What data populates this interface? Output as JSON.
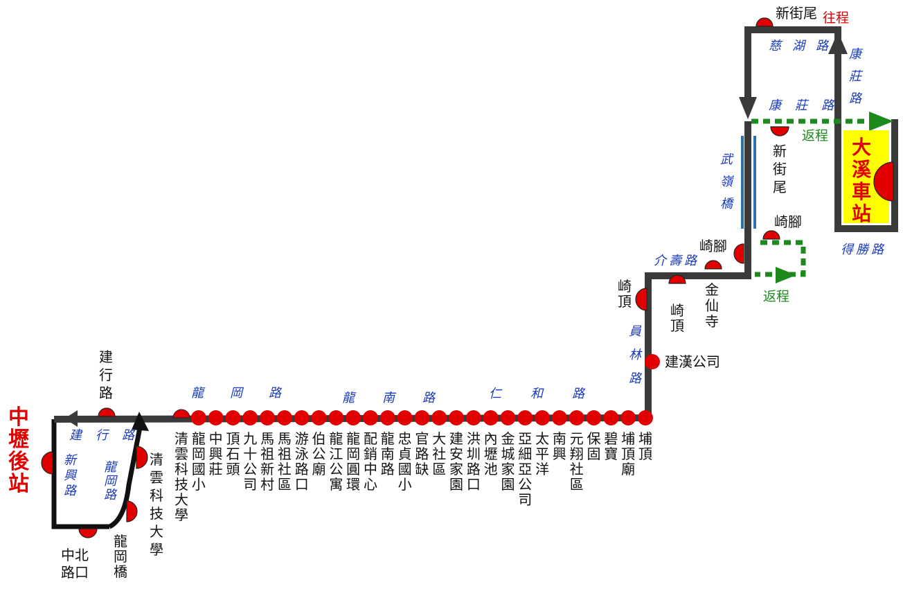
{
  "colors": {
    "route": "#3a3a3a",
    "return_route": "#1e8a1e",
    "stop": "#e00000",
    "terminal_text": "#e00000",
    "road_text": "#1a3bbf",
    "terminal_box": "#ffff00",
    "bridge": "#2c6fb0",
    "outbound_label": "#e00000",
    "return_label": "#1e8a1e"
  },
  "terminals": {
    "west": "中壢後站",
    "east": "大溪車站"
  },
  "directions": {
    "outbound": "往程",
    "return": "返程"
  },
  "roads": {
    "jianxing": "建行路",
    "xinxing": "新興路",
    "longgang_small": "龍岡路",
    "longgang": "龍岡路",
    "longnan": "龍南路",
    "renhe": "仁和路",
    "yuanlin": "員林路",
    "jieshou": "介壽路",
    "wuling_bridge": "武嶺橋",
    "cihu": "慈湖路",
    "kangzhuang_v": "康莊路",
    "kangzhuang_h": "康莊路",
    "desheng": "得勝路"
  },
  "stops": {
    "jianxing": "建行路",
    "zhongbei": "中北路口",
    "longgangqiao": "龍岡橋",
    "qingyun_tech": "清雲科技大學",
    "main_row": [
      "清雲科技大學",
      "龍岡國小",
      "中興莊",
      "頂石頭",
      "九十公司",
      "馬祖新村",
      "馬祖社區",
      "游泳路口",
      "伯公廟",
      "龍江公寓",
      "龍岡圓環",
      "配銷中心",
      "龍南路",
      "忠貞國小",
      "官路缺",
      "大社區",
      "建安家園",
      "洪圳路口",
      "內壢池",
      "金城家園",
      "亞細亞公司",
      "太平洋",
      "南興",
      "元翔社區",
      "保固",
      "碧寶",
      "埔頂廟",
      "埔頂"
    ],
    "jianhan": "建漢公司",
    "qiding_left": "崎頂",
    "qiding_right": "崎頂",
    "jinxian": "金仙寺",
    "qijiao_left": "崎腳",
    "qijiao_right": "崎腳",
    "xinjiewei_top": "新街尾",
    "xinjiewei_mid": "新街尾"
  }
}
